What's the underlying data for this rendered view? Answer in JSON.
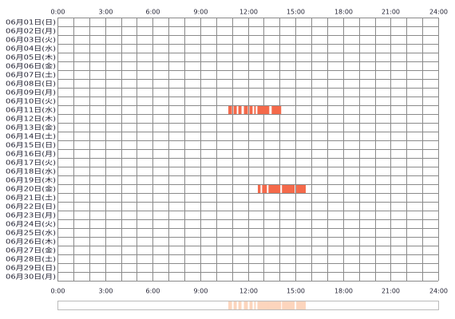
{
  "chart_data": {
    "type": "timeline",
    "categories": [
      "06月01日(日)",
      "06月02日(月)",
      "06月03日(火)",
      "06月04日(水)",
      "06月05日(木)",
      "06月06日(金)",
      "06月07日(土)",
      "06月08日(日)",
      "06月09日(月)",
      "06月10日(火)",
      "06月11日(水)",
      "06月12日(木)",
      "06月13日(金)",
      "06月14日(土)",
      "06月15日(日)",
      "06月16日(月)",
      "06月17日(火)",
      "06月18日(水)",
      "06月19日(木)",
      "06月20日(金)",
      "06月21日(土)",
      "06月22日(日)",
      "06月23日(月)",
      "06月24日(火)",
      "06月25日(水)",
      "06月26日(木)",
      "06月27日(金)",
      "06月28日(土)",
      "06月29日(日)",
      "06月30日(月)"
    ],
    "values": [
      [],
      [],
      [],
      [],
      [],
      [],
      [],
      [],
      [],
      [],
      [
        [
          10.77,
          11.0
        ],
        [
          11.1,
          11.3
        ],
        [
          11.4,
          11.6
        ],
        [
          11.75,
          12.0
        ],
        [
          12.1,
          12.3
        ],
        [
          12.4,
          12.5
        ],
        [
          12.6,
          13.35
        ],
        [
          13.5,
          14.1
        ]
      ],
      [],
      [],
      [],
      [],
      [],
      [],
      [],
      [],
      [
        [
          12.63,
          12.8
        ],
        [
          12.9,
          13.2
        ],
        [
          13.3,
          14.05
        ],
        [
          14.15,
          14.95
        ],
        [
          15.05,
          15.65
        ]
      ],
      [],
      [],
      [],
      [],
      [],
      [],
      [],
      [],
      [],
      []
    ],
    "xlim": [
      0,
      24
    ],
    "xticks": [
      {
        "value": 0,
        "label": "0:00"
      },
      {
        "value": 3,
        "label": "3:00"
      },
      {
        "value": 6,
        "label": "6:00"
      },
      {
        "value": 9,
        "label": "9:00"
      },
      {
        "value": 12,
        "label": "12:00"
      },
      {
        "value": 15,
        "label": "15:00"
      },
      {
        "value": 18,
        "label": "18:00"
      },
      {
        "value": 21,
        "label": "21:00"
      },
      {
        "value": 24,
        "label": "24:00"
      }
    ],
    "xminorticks": [
      1,
      2,
      4,
      5,
      7,
      8,
      10,
      11,
      13,
      14,
      16,
      17,
      19,
      20,
      22,
      23
    ],
    "color": "#f4694a",
    "summary_color": "#fdd5bd"
  }
}
